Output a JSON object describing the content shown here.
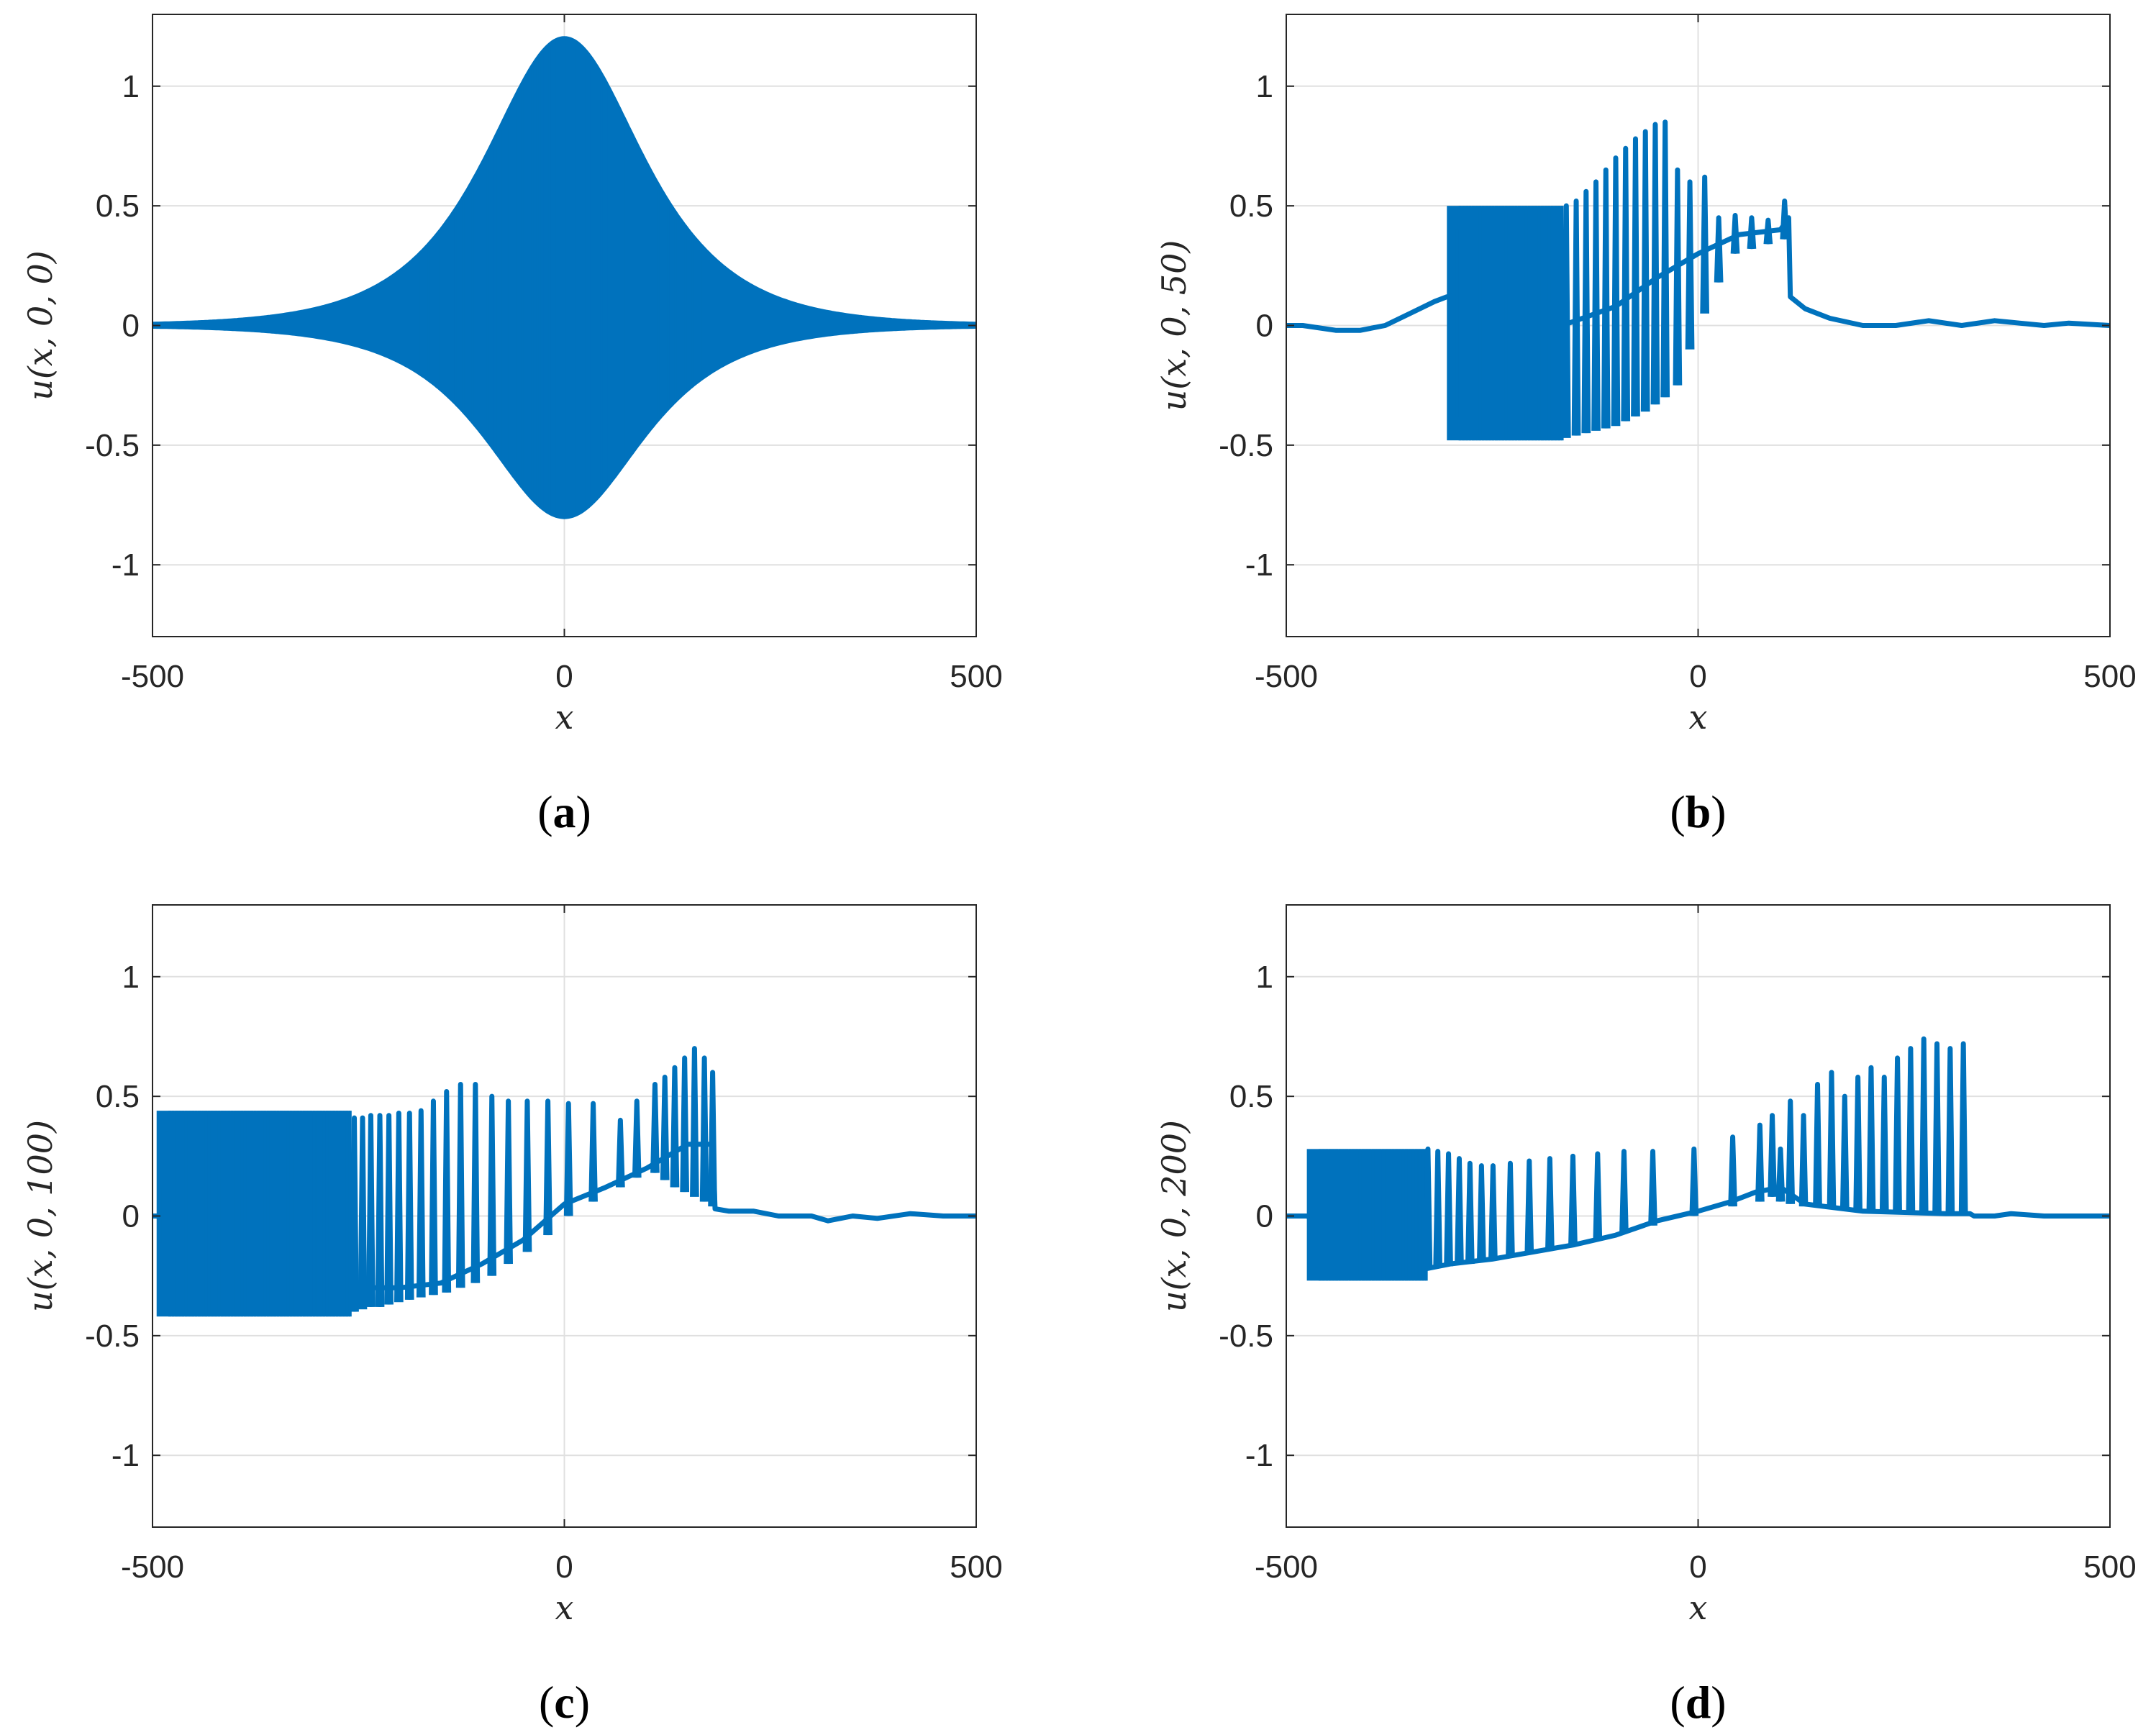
{
  "colors": {
    "line": "#0072BD",
    "grid": "#e0e0e0",
    "axis": "#262626",
    "background": "#ffffff"
  },
  "chart_data": [
    {
      "type": "line",
      "panel": "a",
      "caption": "(a)",
      "caption_letter": "a",
      "xlabel": "x",
      "ylabel": "u(x, 0, 0)",
      "xlim": [
        -500,
        500
      ],
      "ylim": [
        -1.3,
        1.3
      ],
      "xticks": [
        -500,
        0,
        500
      ],
      "xtick_labels": [
        "-500",
        "0",
        "500"
      ],
      "yticks": [
        1,
        0.5,
        0,
        -0.5,
        -1
      ],
      "ytick_labels": [
        "1",
        "0.5",
        "0",
        "-0.5",
        "-1"
      ],
      "grid": true,
      "description": "Dense oscillation (wave packet) centered at x=0 with envelope peaking near 1.2 (upper) and -0.8 (lower)",
      "series": [
        {
          "name": "u",
          "kind": "wave_packet",
          "center": 0,
          "upper_peak": 1.2,
          "lower_peak": -0.8,
          "envelope_width": 85
        }
      ]
    },
    {
      "type": "line",
      "panel": "b",
      "caption": "(b)",
      "caption_letter": "b",
      "xlabel": "x",
      "ylabel": "u(x, 0, 50)",
      "xlim": [
        -500,
        500
      ],
      "ylim": [
        -1.3,
        1.3
      ],
      "xticks": [
        -500,
        0,
        500
      ],
      "xtick_labels": [
        "-500",
        "0",
        "500"
      ],
      "yticks": [
        1,
        0.5,
        0,
        -0.5,
        -1
      ],
      "ytick_labels": [
        "1",
        "0.5",
        "0",
        "-0.5",
        "-1"
      ],
      "grid": true,
      "series": [
        {
          "name": "u",
          "kind": "profile",
          "dense_band": {
            "x": [
              -305,
              -165
            ],
            "upper": 0.5,
            "lower": -0.48
          },
          "points": [
            [
              -500,
              0.0
            ],
            [
              -480,
              0.0
            ],
            [
              -440,
              -0.02
            ],
            [
              -410,
              -0.02
            ],
            [
              -380,
              0.0
            ],
            [
              -350,
              0.05
            ],
            [
              -320,
              0.1
            ],
            [
              -305,
              0.12
            ],
            [
              -165,
              0.0
            ],
            [
              -100,
              0.08
            ],
            [
              -50,
              0.2
            ],
            [
              0,
              0.3
            ],
            [
              50,
              0.38
            ],
            [
              100,
              0.4
            ],
            [
              110,
              0.45
            ],
            [
              112,
              0.12
            ],
            [
              130,
              0.07
            ],
            [
              160,
              0.03
            ],
            [
              200,
              0.0
            ],
            [
              240,
              0.0
            ],
            [
              280,
              0.02
            ],
            [
              320,
              0.0
            ],
            [
              360,
              0.02
            ],
            [
              390,
              0.01
            ],
            [
              420,
              0.0
            ],
            [
              450,
              0.01
            ],
            [
              500,
              0.0
            ]
          ],
          "spikes": [
            {
              "x": -160,
              "top": 0.5,
              "bottom": -0.47
            },
            {
              "x": -148,
              "top": 0.52,
              "bottom": -0.46
            },
            {
              "x": -136,
              "top": 0.56,
              "bottom": -0.45
            },
            {
              "x": -124,
              "top": 0.6,
              "bottom": -0.44
            },
            {
              "x": -112,
              "top": 0.65,
              "bottom": -0.43
            },
            {
              "x": -100,
              "top": 0.7,
              "bottom": -0.42
            },
            {
              "x": -88,
              "top": 0.74,
              "bottom": -0.4
            },
            {
              "x": -76,
              "top": 0.78,
              "bottom": -0.38
            },
            {
              "x": -64,
              "top": 0.81,
              "bottom": -0.36
            },
            {
              "x": -52,
              "top": 0.84,
              "bottom": -0.33
            },
            {
              "x": -40,
              "top": 0.85,
              "bottom": -0.3
            },
            {
              "x": -25,
              "top": 0.65,
              "bottom": -0.25
            },
            {
              "x": -10,
              "top": 0.6,
              "bottom": -0.1
            },
            {
              "x": 8,
              "top": 0.62,
              "bottom": 0.05
            },
            {
              "x": 25,
              "top": 0.45,
              "bottom": 0.18
            },
            {
              "x": 45,
              "top": 0.46,
              "bottom": 0.3
            },
            {
              "x": 65,
              "top": 0.45,
              "bottom": 0.32
            },
            {
              "x": 85,
              "top": 0.44,
              "bottom": 0.34
            },
            {
              "x": 105,
              "top": 0.52,
              "bottom": 0.36
            }
          ]
        }
      ]
    },
    {
      "type": "line",
      "panel": "c",
      "caption": "(c)",
      "caption_letter": "c",
      "xlabel": "x",
      "ylabel": "u(x, 0, 100)",
      "xlim": [
        -500,
        500
      ],
      "ylim": [
        -1.3,
        1.3
      ],
      "xticks": [
        -500,
        0,
        500
      ],
      "xtick_labels": [
        "-500",
        "0",
        "500"
      ],
      "yticks": [
        1,
        0.5,
        0,
        -0.5,
        -1
      ],
      "ytick_labels": [
        "1",
        "0.5",
        "0",
        "-0.5",
        "-1"
      ],
      "grid": true,
      "series": [
        {
          "name": "u",
          "kind": "profile",
          "dense_band": {
            "x": [
              -495,
              -260
            ],
            "upper": 0.44,
            "lower": -0.42
          },
          "points": [
            [
              -500,
              0.0
            ],
            [
              -495,
              0.0
            ],
            [
              -260,
              -0.3
            ],
            [
              -200,
              -0.3
            ],
            [
              -150,
              -0.28
            ],
            [
              -100,
              -0.2
            ],
            [
              -50,
              -0.1
            ],
            [
              0,
              0.05
            ],
            [
              50,
              0.12
            ],
            [
              100,
              0.2
            ],
            [
              150,
              0.3
            ],
            [
              180,
              0.3
            ],
            [
              183,
              0.03
            ],
            [
              200,
              0.02
            ],
            [
              230,
              0.02
            ],
            [
              260,
              0.0
            ],
            [
              300,
              0.0
            ],
            [
              320,
              -0.02
            ],
            [
              350,
              0.0
            ],
            [
              380,
              -0.01
            ],
            [
              420,
              0.01
            ],
            [
              460,
              0.0
            ],
            [
              500,
              0.0
            ]
          ],
          "spikes": [
            {
              "x": -255,
              "top": 0.41,
              "bottom": -0.4
            },
            {
              "x": -245,
              "top": 0.41,
              "bottom": -0.39
            },
            {
              "x": -235,
              "top": 0.42,
              "bottom": -0.38
            },
            {
              "x": -224,
              "top": 0.42,
              "bottom": -0.38
            },
            {
              "x": -213,
              "top": 0.42,
              "bottom": -0.37
            },
            {
              "x": -201,
              "top": 0.43,
              "bottom": -0.36
            },
            {
              "x": -188,
              "top": 0.43,
              "bottom": -0.35
            },
            {
              "x": -174,
              "top": 0.44,
              "bottom": -0.34
            },
            {
              "x": -159,
              "top": 0.48,
              "bottom": -0.33
            },
            {
              "x": -143,
              "top": 0.52,
              "bottom": -0.32
            },
            {
              "x": -126,
              "top": 0.55,
              "bottom": -0.3
            },
            {
              "x": -108,
              "top": 0.55,
              "bottom": -0.28
            },
            {
              "x": -88,
              "top": 0.5,
              "bottom": -0.25
            },
            {
              "x": -68,
              "top": 0.48,
              "bottom": -0.2
            },
            {
              "x": -45,
              "top": 0.48,
              "bottom": -0.15
            },
            {
              "x": -20,
              "top": 0.48,
              "bottom": -0.08
            },
            {
              "x": 5,
              "top": 0.47,
              "bottom": 0.0
            },
            {
              "x": 35,
              "top": 0.47,
              "bottom": 0.06
            },
            {
              "x": 68,
              "top": 0.4,
              "bottom": 0.12
            },
            {
              "x": 88,
              "top": 0.48,
              "bottom": 0.16
            },
            {
              "x": 110,
              "top": 0.55,
              "bottom": 0.18
            },
            {
              "x": 122,
              "top": 0.58,
              "bottom": 0.15
            },
            {
              "x": 134,
              "top": 0.62,
              "bottom": 0.12
            },
            {
              "x": 146,
              "top": 0.66,
              "bottom": 0.1
            },
            {
              "x": 158,
              "top": 0.7,
              "bottom": 0.08
            },
            {
              "x": 170,
              "top": 0.66,
              "bottom": 0.06
            },
            {
              "x": 180,
              "top": 0.6,
              "bottom": 0.04
            }
          ]
        }
      ]
    },
    {
      "type": "line",
      "panel": "d",
      "caption": "(d)",
      "caption_letter": "d",
      "xlabel": "x",
      "ylabel": "u(x, 0, 200)",
      "xlim": [
        -500,
        500
      ],
      "ylim": [
        -1.3,
        1.3
      ],
      "xticks": [
        -500,
        0,
        500
      ],
      "xtick_labels": [
        "-500",
        "0",
        "500"
      ],
      "yticks": [
        1,
        0.5,
        0,
        -0.5,
        -1
      ],
      "ytick_labels": [
        "1",
        "0.5",
        "0",
        "-0.5",
        "-1"
      ],
      "grid": true,
      "series": [
        {
          "name": "u",
          "kind": "profile",
          "dense_band": {
            "x": [
              -475,
              -330
            ],
            "upper": 0.28,
            "lower": -0.27
          },
          "points": [
            [
              -500,
              0.0
            ],
            [
              -480,
              0.0
            ],
            [
              -475,
              0.0
            ],
            [
              -330,
              -0.22
            ],
            [
              -300,
              -0.2
            ],
            [
              -250,
              -0.18
            ],
            [
              -200,
              -0.15
            ],
            [
              -150,
              -0.12
            ],
            [
              -100,
              -0.08
            ],
            [
              -50,
              -0.02
            ],
            [
              0,
              0.02
            ],
            [
              40,
              0.06
            ],
            [
              70,
              0.1
            ],
            [
              100,
              0.12
            ],
            [
              130,
              0.05
            ],
            [
              200,
              0.02
            ],
            [
              300,
              0.01
            ],
            [
              330,
              0.01
            ],
            [
              335,
              0.0
            ],
            [
              360,
              0.0
            ],
            [
              380,
              0.01
            ],
            [
              420,
              0.0
            ],
            [
              500,
              0.0
            ]
          ],
          "spikes": [
            {
              "x": -328,
              "top": 0.28,
              "bottom": -0.22
            },
            {
              "x": -316,
              "top": 0.27,
              "bottom": -0.21
            },
            {
              "x": -303,
              "top": 0.26,
              "bottom": -0.21
            },
            {
              "x": -290,
              "top": 0.24,
              "bottom": -0.2
            },
            {
              "x": -277,
              "top": 0.22,
              "bottom": -0.2
            },
            {
              "x": -263,
              "top": 0.21,
              "bottom": -0.19
            },
            {
              "x": -249,
              "top": 0.21,
              "bottom": -0.18
            },
            {
              "x": -228,
              "top": 0.22,
              "bottom": -0.17
            },
            {
              "x": -205,
              "top": 0.23,
              "bottom": -0.16
            },
            {
              "x": -180,
              "top": 0.24,
              "bottom": -0.14
            },
            {
              "x": -152,
              "top": 0.25,
              "bottom": -0.12
            },
            {
              "x": -122,
              "top": 0.26,
              "bottom": -0.1
            },
            {
              "x": -90,
              "top": 0.27,
              "bottom": -0.07
            },
            {
              "x": -55,
              "top": 0.27,
              "bottom": -0.04
            },
            {
              "x": -5,
              "top": 0.28,
              "bottom": 0.0
            },
            {
              "x": 42,
              "top": 0.33,
              "bottom": 0.04
            },
            {
              "x": 75,
              "top": 0.38,
              "bottom": 0.06
            },
            {
              "x": 90,
              "top": 0.42,
              "bottom": 0.08
            },
            {
              "x": 100,
              "top": 0.28,
              "bottom": 0.06
            },
            {
              "x": 112,
              "top": 0.48,
              "bottom": 0.05
            },
            {
              "x": 128,
              "top": 0.42,
              "bottom": 0.04
            },
            {
              "x": 145,
              "top": 0.55,
              "bottom": 0.04
            },
            {
              "x": 162,
              "top": 0.6,
              "bottom": 0.03
            },
            {
              "x": 178,
              "top": 0.5,
              "bottom": 0.03
            },
            {
              "x": 194,
              "top": 0.58,
              "bottom": 0.02
            },
            {
              "x": 210,
              "top": 0.62,
              "bottom": 0.02
            },
            {
              "x": 226,
              "top": 0.58,
              "bottom": 0.02
            },
            {
              "x": 242,
              "top": 0.66,
              "bottom": 0.02
            },
            {
              "x": 258,
              "top": 0.7,
              "bottom": 0.01
            },
            {
              "x": 274,
              "top": 0.74,
              "bottom": 0.01
            },
            {
              "x": 290,
              "top": 0.72,
              "bottom": 0.01
            },
            {
              "x": 306,
              "top": 0.7,
              "bottom": 0.01
            },
            {
              "x": 322,
              "top": 0.72,
              "bottom": 0.01
            }
          ]
        }
      ]
    }
  ]
}
